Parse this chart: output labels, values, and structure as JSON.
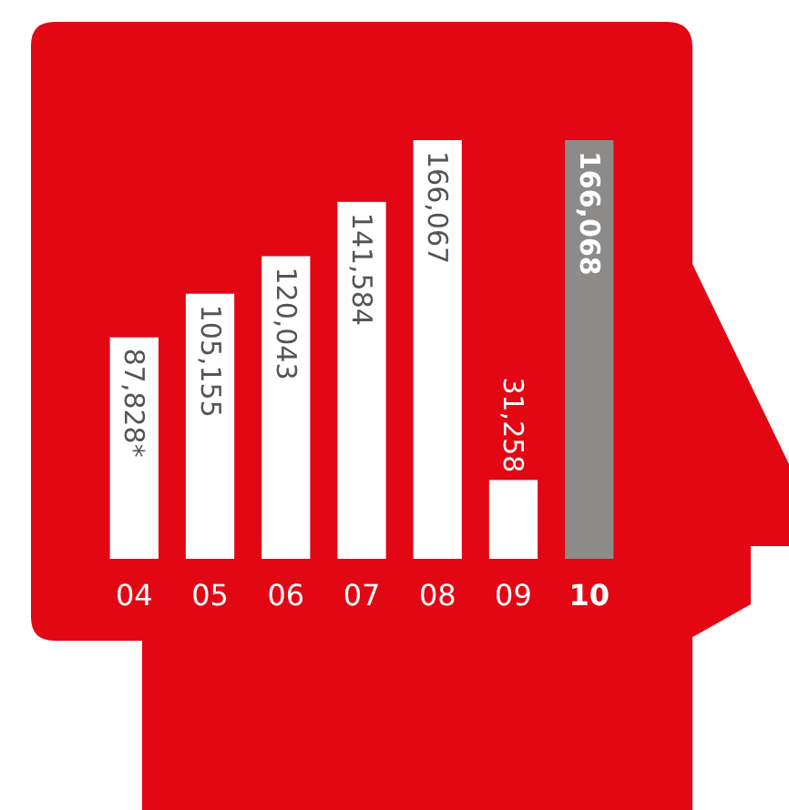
{
  "chart_data": {
    "type": "bar",
    "categories": [
      "04",
      "05",
      "06",
      "07",
      "08",
      "09",
      "10"
    ],
    "values": [
      87828,
      105155,
      120043,
      141584,
      166067,
      31258,
      166068
    ],
    "colors": [
      "#ffffff",
      "#ffffff",
      "#ffffff",
      "#ffffff",
      "#ffffff",
      "#ffffff",
      "#8c8b8a"
    ],
    "value_labels": [
      "87,828*",
      "105,155",
      "120,043",
      "141,584",
      "166,067",
      "31,258",
      "166,068"
    ]
  }
}
